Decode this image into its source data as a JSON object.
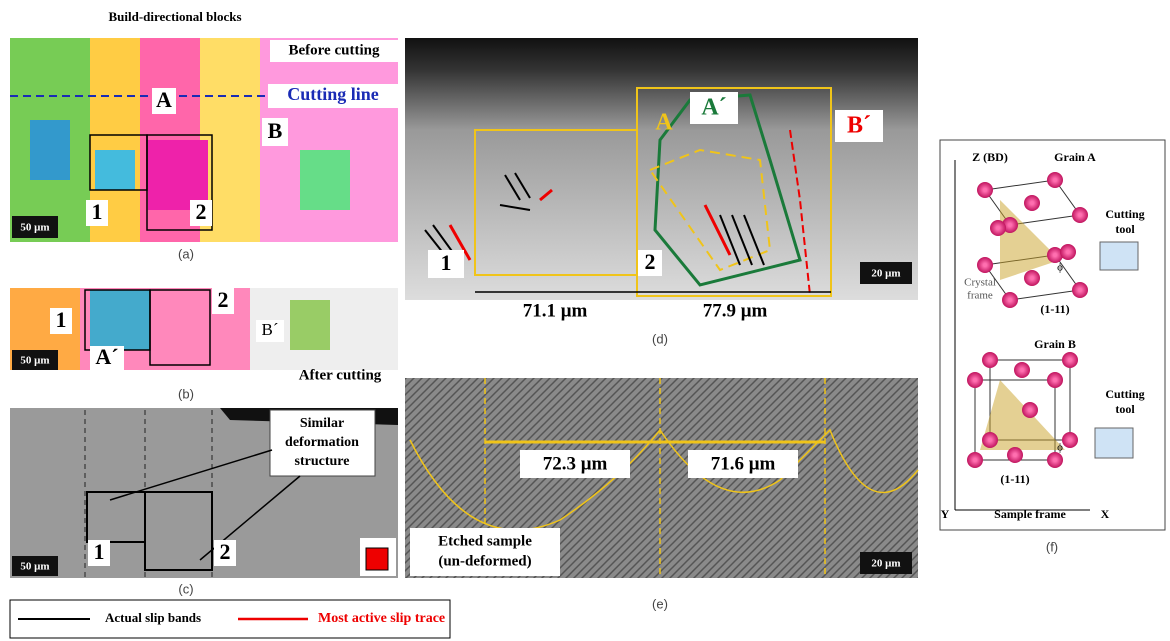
{
  "panel_a": {
    "top_label": "Build-directional blocks",
    "before_label": "Before cutting",
    "cutting_label": "Cutting line",
    "grain_a": "A",
    "grain_b": "B",
    "box_1": "1",
    "box_2": "2",
    "scale": "50 μm",
    "caption": "(a)"
  },
  "panel_b": {
    "box_1": "1",
    "box_2": "2",
    "grain_a": "A´",
    "grain_b": "B´",
    "scale": "50 μm",
    "after_label": "After cutting",
    "caption": "(b)"
  },
  "panel_c": {
    "note": [
      "Similar",
      "deformation",
      "structure"
    ],
    "box_1": "1",
    "box_2": "2",
    "scale": "50 μm",
    "caption": "(c)"
  },
  "legend": [
    "Actual slip bands",
    "Most active slip trace"
  ],
  "panel_d": {
    "box_1": "1",
    "box_2": "2",
    "grain_a": "A",
    "grain_a_after": "A´",
    "grain_b_after": "B´",
    "scale": "20 μm",
    "width_1": "71.1 μm",
    "width_2": "77.9 μm",
    "caption": "(d)"
  },
  "panel_e": {
    "width_1": "72.3 μm",
    "width_2": "71.6 μm",
    "note": [
      "Etched sample",
      "(un-deformed)"
    ],
    "scale": "20 μm",
    "caption": "(e)"
  },
  "panel_f": {
    "z_label": "Z (BD)",
    "grain_a": "Grain A",
    "tool_a": [
      "Cutting",
      "tool"
    ],
    "phi_a": "ϕ",
    "crystal_frame": [
      "Crystal",
      "frame"
    ],
    "plane_a": "(1-11)",
    "grain_b": "Grain B",
    "tool_b": [
      "Cutting",
      "tool"
    ],
    "phi_b": "ϕ",
    "plane_b": "(1-11)",
    "y_label": "Y",
    "sample_frame": "Sample frame",
    "x_label": "X",
    "caption": "(f)"
  }
}
